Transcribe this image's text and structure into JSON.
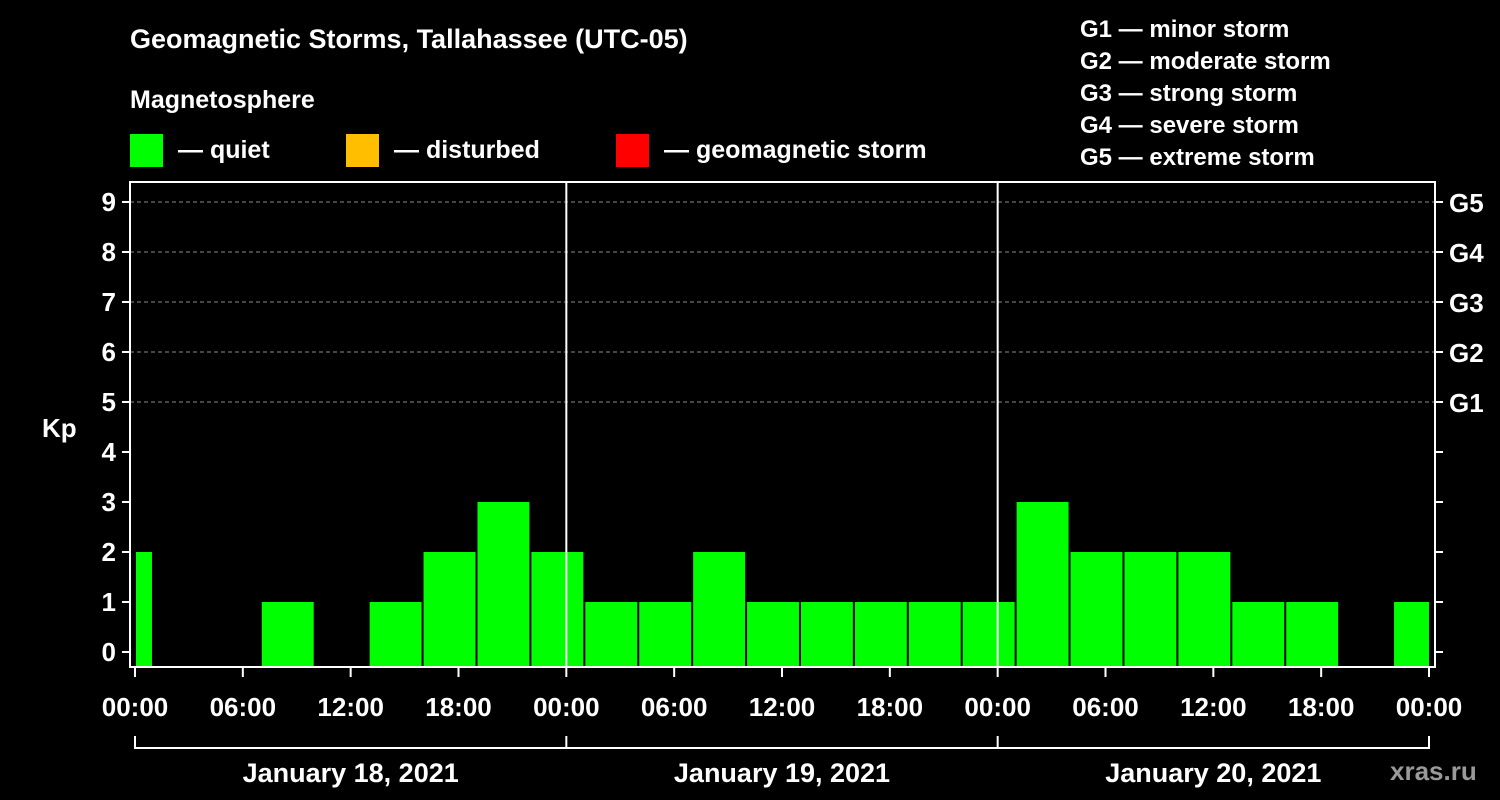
{
  "title": "Geomagnetic Storms, Tallahassee (UTC-05)",
  "subtitle": "Magnetosphere",
  "legend": [
    {
      "color": "#00ff00",
      "label": "— quiet"
    },
    {
      "color": "#ffbf00",
      "label": "— disturbed"
    },
    {
      "color": "#ff0000",
      "label": "— geomagnetic storm"
    }
  ],
  "storm_scale": [
    "G1 — minor storm",
    "G2 — moderate storm",
    "G3 — strong storm",
    "G4 — severe storm",
    "G5 — extreme storm"
  ],
  "watermark": "xras.ru",
  "chart_data": {
    "type": "bar",
    "ylabel": "Kp",
    "ylim": [
      0,
      9
    ],
    "yticks": [
      0,
      1,
      2,
      3,
      4,
      5,
      6,
      7,
      8,
      9
    ],
    "right_labels": [
      {
        "value": 5,
        "label": "G1"
      },
      {
        "value": 6,
        "label": "G2"
      },
      {
        "value": 7,
        "label": "G3"
      },
      {
        "value": 8,
        "label": "G4"
      },
      {
        "value": 9,
        "label": "G5"
      }
    ],
    "grid": true,
    "x_range_hours": [
      0,
      72
    ],
    "xtick_labels": [
      "00:00",
      "06:00",
      "12:00",
      "18:00",
      "00:00",
      "06:00",
      "12:00",
      "18:00",
      "00:00",
      "06:00",
      "12:00",
      "18:00",
      "00:00"
    ],
    "day_labels": [
      "January 18, 2021",
      "January 19, 2021",
      "January 20, 2021"
    ],
    "bar_color": "#00ff00",
    "bars": [
      {
        "start_hour": 0,
        "end_hour": 1,
        "kp": 2
      },
      {
        "start_hour": 1,
        "end_hour": 4,
        "kp": 0
      },
      {
        "start_hour": 4,
        "end_hour": 7,
        "kp": 0
      },
      {
        "start_hour": 7,
        "end_hour": 10,
        "kp": 1
      },
      {
        "start_hour": 10,
        "end_hour": 13,
        "kp": 0
      },
      {
        "start_hour": 13,
        "end_hour": 16,
        "kp": 1
      },
      {
        "start_hour": 16,
        "end_hour": 19,
        "kp": 2
      },
      {
        "start_hour": 19,
        "end_hour": 22,
        "kp": 3
      },
      {
        "start_hour": 22,
        "end_hour": 25,
        "kp": 2
      },
      {
        "start_hour": 25,
        "end_hour": 28,
        "kp": 1
      },
      {
        "start_hour": 28,
        "end_hour": 31,
        "kp": 1
      },
      {
        "start_hour": 31,
        "end_hour": 34,
        "kp": 2
      },
      {
        "start_hour": 34,
        "end_hour": 37,
        "kp": 1
      },
      {
        "start_hour": 37,
        "end_hour": 40,
        "kp": 1
      },
      {
        "start_hour": 40,
        "end_hour": 43,
        "kp": 1
      },
      {
        "start_hour": 43,
        "end_hour": 46,
        "kp": 1
      },
      {
        "start_hour": 46,
        "end_hour": 49,
        "kp": 1
      },
      {
        "start_hour": 49,
        "end_hour": 52,
        "kp": 3
      },
      {
        "start_hour": 52,
        "end_hour": 55,
        "kp": 2
      },
      {
        "start_hour": 55,
        "end_hour": 58,
        "kp": 2
      },
      {
        "start_hour": 58,
        "end_hour": 61,
        "kp": 2
      },
      {
        "start_hour": 61,
        "end_hour": 64,
        "kp": 1
      },
      {
        "start_hour": 64,
        "end_hour": 67,
        "kp": 1
      },
      {
        "start_hour": 67,
        "end_hour": 70,
        "kp": 0
      },
      {
        "start_hour": 70,
        "end_hour": 73,
        "kp": 1
      }
    ]
  }
}
